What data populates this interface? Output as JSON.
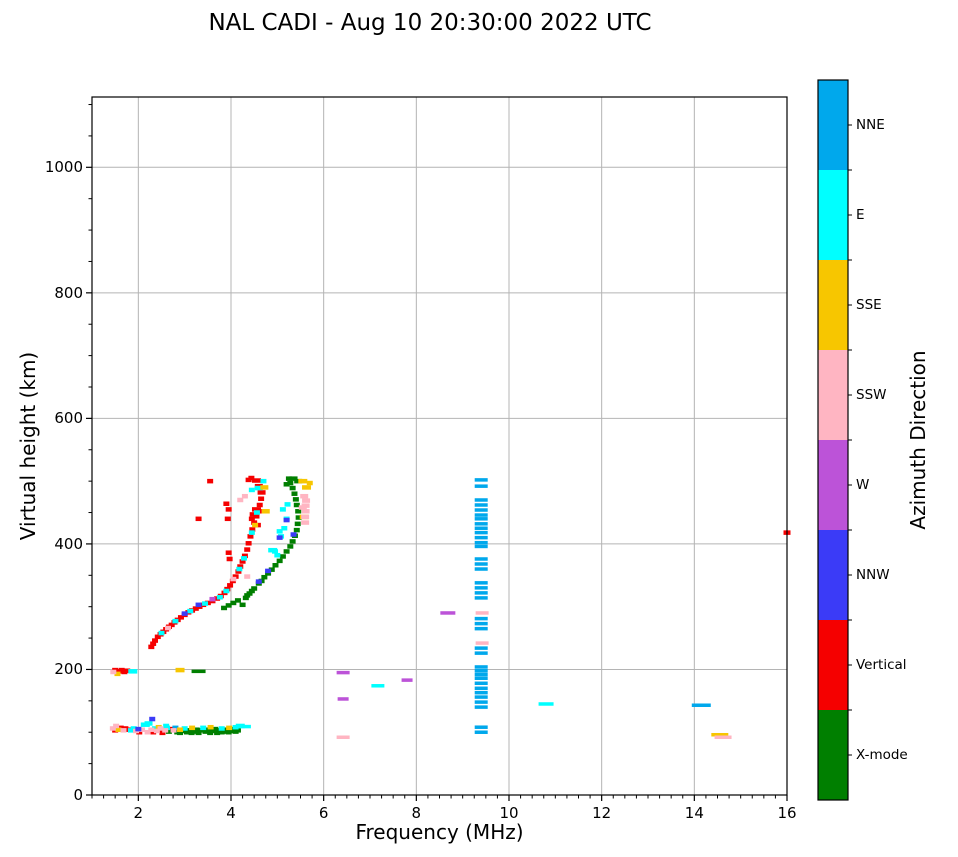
{
  "title": "NAL CADI - Aug 10 20:30:00 2022 UTC",
  "axes": {
    "xlabel": "Frequency (MHz)",
    "ylabel": "Virtual height (km)",
    "x_ticks": [
      2,
      4,
      6,
      8,
      10,
      12,
      14,
      16
    ],
    "y_ticks": [
      0,
      200,
      400,
      600,
      800,
      1000
    ],
    "xlim": [
      1,
      16
    ],
    "ylim": [
      0,
      1112
    ],
    "x_minor_step": 0.25,
    "y_minor_step": 50,
    "grid": true,
    "grid_color": "#b4b4b4"
  },
  "colorbar": {
    "label": "Azimuth Direction",
    "categories_top_to_bottom": [
      {
        "label": "NNE",
        "color": "#00a8ec"
      },
      {
        "label": "E",
        "color": "#00ffff"
      },
      {
        "label": "SSE",
        "color": "#f7c600"
      },
      {
        "label": "SSW",
        "color": "#ffb5c2"
      },
      {
        "label": "W",
        "color": "#bc53d8"
      },
      {
        "label": "NNW",
        "color": "#3b3bf7"
      },
      {
        "label": "Vertical",
        "color": "#f50000"
      },
      {
        "label": "X-mode",
        "color": "#007f00"
      }
    ]
  },
  "chart_data": {
    "type": "scatter",
    "title": "NAL CADI - Aug 10 20:30:00 2022 UTC",
    "xlabel": "Frequency (MHz)",
    "ylabel": "Virtual height (km)",
    "xlim": [
      1,
      16
    ],
    "ylim": [
      0,
      1112
    ],
    "legend_position": "right-colorbar",
    "point_units": "freq_MHz, height_km, optional_dash_width_px",
    "series": [
      {
        "name": "Vertical",
        "color": "#f50000",
        "points": [
          [
            2.28,
            236
          ],
          [
            2.32,
            241
          ],
          [
            2.36,
            246
          ],
          [
            2.42,
            252
          ],
          [
            2.48,
            256
          ],
          [
            2.54,
            260
          ],
          [
            2.6,
            264
          ],
          [
            2.66,
            268
          ],
          [
            2.72,
            271
          ],
          [
            2.78,
            275
          ],
          [
            2.85,
            279
          ],
          [
            2.92,
            283
          ],
          [
            3.0,
            287
          ],
          [
            3.08,
            291
          ],
          [
            3.16,
            294
          ],
          [
            3.24,
            297
          ],
          [
            3.32,
            300
          ],
          [
            3.4,
            303
          ],
          [
            3.5,
            306
          ],
          [
            3.6,
            309
          ],
          [
            3.7,
            313
          ],
          [
            3.78,
            317
          ],
          [
            3.86,
            322
          ],
          [
            3.92,
            328
          ],
          [
            3.98,
            334
          ],
          [
            4.04,
            341
          ],
          [
            4.1,
            348
          ],
          [
            4.16,
            356
          ],
          [
            4.2,
            364
          ],
          [
            4.25,
            372
          ],
          [
            4.3,
            381
          ],
          [
            4.35,
            391
          ],
          [
            4.38,
            401
          ],
          [
            4.42,
            412
          ],
          [
            4.46,
            423
          ],
          [
            4.5,
            434
          ],
          [
            4.55,
            444
          ],
          [
            4.6,
            452
          ],
          [
            4.62,
            462
          ],
          [
            4.65,
            472
          ],
          [
            4.66,
            482,
            8
          ],
          [
            4.6,
            492,
            8
          ],
          [
            4.55,
            501,
            9
          ],
          [
            4.44,
            505
          ],
          [
            4.38,
            502
          ],
          [
            4.55,
            455,
            9
          ],
          [
            4.5,
            447,
            9
          ],
          [
            4.58,
            430
          ],
          [
            4.45,
            440
          ],
          [
            3.3,
            440
          ],
          [
            3.55,
            500
          ],
          [
            3.93,
            440
          ],
          [
            3.95,
            455
          ],
          [
            3.9,
            464
          ],
          [
            3.95,
            386
          ],
          [
            3.97,
            376
          ],
          [
            1.5,
            103
          ],
          [
            1.62,
            107
          ],
          [
            1.72,
            106
          ],
          [
            1.78,
            104
          ],
          [
            2.02,
            100
          ],
          [
            2.32,
            100
          ],
          [
            2.5,
            104
          ],
          [
            2.52,
            99
          ],
          [
            2.7,
            105
          ],
          [
            1.5,
            199
          ],
          [
            1.58,
            197
          ],
          [
            1.64,
            199
          ],
          [
            1.7,
            196
          ],
          [
            1.76,
            198
          ],
          [
            16.0,
            418,
            7
          ]
        ]
      },
      {
        "name": "X-mode",
        "color": "#007f00",
        "points": [
          [
            2.66,
            101
          ],
          [
            2.84,
            100
          ],
          [
            2.9,
            99
          ],
          [
            2.95,
            102
          ],
          [
            3.05,
            100
          ],
          [
            3.1,
            103
          ],
          [
            3.15,
            99
          ],
          [
            3.2,
            101
          ],
          [
            3.26,
            104
          ],
          [
            3.3,
            99
          ],
          [
            3.36,
            103
          ],
          [
            3.45,
            101
          ],
          [
            3.5,
            104
          ],
          [
            3.55,
            99
          ],
          [
            3.6,
            102
          ],
          [
            3.66,
            105
          ],
          [
            3.7,
            99
          ],
          [
            3.76,
            103
          ],
          [
            3.8,
            100
          ],
          [
            3.86,
            101
          ],
          [
            3.9,
            104
          ],
          [
            3.95,
            100
          ],
          [
            4.0,
            102
          ],
          [
            4.06,
            105
          ],
          [
            4.1,
            101
          ],
          [
            4.15,
            103
          ],
          [
            3.3,
            197,
            14
          ],
          [
            3.85,
            298
          ],
          [
            3.95,
            302
          ],
          [
            4.05,
            306
          ],
          [
            4.15,
            310
          ],
          [
            4.25,
            303
          ],
          [
            4.32,
            314
          ],
          [
            4.35,
            318
          ],
          [
            4.4,
            321
          ],
          [
            4.45,
            325
          ],
          [
            4.5,
            329
          ],
          [
            4.6,
            337
          ],
          [
            4.66,
            341
          ],
          [
            4.72,
            347
          ],
          [
            4.8,
            353
          ],
          [
            4.88,
            359
          ],
          [
            4.96,
            366
          ],
          [
            5.05,
            373
          ],
          [
            5.12,
            380
          ],
          [
            5.2,
            388
          ],
          [
            5.28,
            396
          ],
          [
            5.33,
            404
          ],
          [
            5.38,
            413
          ],
          [
            5.42,
            422
          ],
          [
            5.44,
            432
          ],
          [
            5.46,
            442
          ],
          [
            5.45,
            452
          ],
          [
            5.42,
            462
          ],
          [
            5.4,
            471
          ],
          [
            5.37,
            480
          ],
          [
            5.33,
            489
          ],
          [
            5.28,
            497
          ],
          [
            5.25,
            504
          ],
          [
            5.35,
            504,
            8
          ],
          [
            5.45,
            500,
            8
          ],
          [
            5.2,
            495
          ]
        ]
      },
      {
        "name": "E",
        "color": "#00ffff",
        "points": [
          [
            1.84,
            103
          ],
          [
            1.9,
            106
          ],
          [
            2.15,
            112,
            9
          ],
          [
            2.22,
            114,
            8
          ],
          [
            2.36,
            106
          ],
          [
            2.6,
            110
          ],
          [
            2.62,
            107
          ],
          [
            3.0,
            106
          ],
          [
            3.4,
            107
          ],
          [
            3.8,
            106
          ],
          [
            4.1,
            108
          ],
          [
            4.2,
            110,
            9
          ],
          [
            4.3,
            109,
            12
          ],
          [
            1.88,
            197,
            9
          ],
          [
            2.5,
            258
          ],
          [
            2.8,
            277
          ],
          [
            3.12,
            293
          ],
          [
            3.44,
            305
          ],
          [
            3.76,
            315
          ],
          [
            3.9,
            325
          ],
          [
            4.18,
            360
          ],
          [
            4.28,
            377
          ],
          [
            4.45,
            418
          ],
          [
            4.56,
            450
          ],
          [
            4.45,
            486
          ],
          [
            4.6,
            489,
            8
          ],
          [
            4.7,
            500
          ],
          [
            4.9,
            390,
            9
          ],
          [
            4.95,
            388
          ],
          [
            5.0,
            382
          ],
          [
            5.05,
            420
          ],
          [
            5.08,
            412
          ],
          [
            5.15,
            425
          ],
          [
            5.2,
            440
          ],
          [
            5.12,
            455
          ],
          [
            5.22,
            463
          ],
          [
            7.17,
            174,
            13
          ],
          [
            10.8,
            145,
            15
          ]
        ]
      },
      {
        "name": "NNE",
        "color": "#00a8ec",
        "points": [
          [
            2.8,
            107
          ],
          [
            9.4,
            502,
            13
          ],
          [
            9.4,
            492,
            13
          ],
          [
            9.4,
            470,
            13
          ],
          [
            9.4,
            462,
            13
          ],
          [
            9.4,
            454,
            13
          ],
          [
            9.4,
            446,
            13
          ],
          [
            9.4,
            440,
            13
          ],
          [
            9.4,
            432,
            13
          ],
          [
            9.4,
            425,
            13
          ],
          [
            9.4,
            418,
            13
          ],
          [
            9.4,
            410,
            13
          ],
          [
            9.4,
            402,
            13
          ],
          [
            9.4,
            396,
            13
          ],
          [
            9.4,
            376,
            13
          ],
          [
            9.4,
            368,
            13
          ],
          [
            9.4,
            360,
            13
          ],
          [
            9.4,
            338,
            13
          ],
          [
            9.4,
            330,
            13
          ],
          [
            9.4,
            322,
            13
          ],
          [
            9.4,
            314,
            13
          ],
          [
            9.4,
            281,
            13
          ],
          [
            9.4,
            273,
            13
          ],
          [
            9.4,
            265,
            13
          ],
          [
            9.4,
            234,
            13
          ],
          [
            9.4,
            226,
            13
          ],
          [
            9.4,
            204,
            13
          ],
          [
            9.4,
            198,
            13
          ],
          [
            9.4,
            192,
            13
          ],
          [
            9.4,
            186,
            13
          ],
          [
            9.4,
            178,
            13
          ],
          [
            9.4,
            170,
            13
          ],
          [
            9.4,
            163,
            13
          ],
          [
            9.4,
            156,
            13
          ],
          [
            9.4,
            148,
            13
          ],
          [
            9.4,
            140,
            13
          ],
          [
            9.4,
            108,
            13
          ],
          [
            9.4,
            100,
            13
          ],
          [
            14.15,
            143,
            19
          ]
        ]
      },
      {
        "name": "SSE",
        "color": "#f7c600",
        "points": [
          [
            1.57,
            104
          ],
          [
            2.44,
            108
          ],
          [
            2.9,
            104
          ],
          [
            3.16,
            107
          ],
          [
            3.56,
            108
          ],
          [
            3.96,
            107
          ],
          [
            1.55,
            193
          ],
          [
            2.9,
            199,
            9
          ],
          [
            4.52,
            430
          ],
          [
            4.75,
            452,
            8
          ],
          [
            4.72,
            490,
            8
          ],
          [
            5.55,
            500,
            9
          ],
          [
            5.63,
            490,
            9
          ],
          [
            5.58,
            443,
            9
          ],
          [
            5.7,
            497
          ],
          [
            14.55,
            96,
            17
          ]
        ]
      },
      {
        "name": "SSW",
        "color": "#ffb5c2",
        "points": [
          [
            1.45,
            106
          ],
          [
            1.52,
            110
          ],
          [
            1.68,
            103
          ],
          [
            1.95,
            102
          ],
          [
            2.08,
            104
          ],
          [
            2.2,
            100
          ],
          [
            2.28,
            104
          ],
          [
            2.4,
            102
          ],
          [
            2.48,
            106
          ],
          [
            2.58,
            103
          ],
          [
            2.76,
            103
          ],
          [
            1.46,
            196
          ],
          [
            2.64,
            266
          ],
          [
            4.05,
            344
          ],
          [
            4.35,
            348
          ],
          [
            4.2,
            470
          ],
          [
            4.3,
            476
          ],
          [
            5.6,
            434,
            8
          ],
          [
            5.6,
            443,
            8
          ],
          [
            5.61,
            452,
            8
          ],
          [
            5.61,
            461,
            8
          ],
          [
            5.62,
            469,
            8
          ],
          [
            5.58,
            476,
            8
          ],
          [
            5.55,
            458,
            8
          ],
          [
            9.42,
            290,
            13
          ],
          [
            9.42,
            242,
            13
          ],
          [
            6.42,
            92,
            13
          ],
          [
            14.62,
            92,
            17
          ]
        ]
      },
      {
        "name": "W",
        "color": "#bc53d8",
        "points": [
          [
            3.6,
            312
          ],
          [
            6.42,
            195,
            13
          ],
          [
            6.42,
            153,
            11
          ],
          [
            7.8,
            183,
            11
          ],
          [
            8.68,
            290,
            15
          ]
        ]
      },
      {
        "name": "NNW",
        "color": "#3b3bf7",
        "points": [
          [
            2.0,
            105
          ],
          [
            2.3,
            121
          ],
          [
            3.0,
            289
          ],
          [
            3.3,
            303
          ],
          [
            4.6,
            340
          ],
          [
            4.8,
            357
          ],
          [
            5.05,
            410
          ],
          [
            5.2,
            438
          ],
          [
            5.35,
            415
          ]
        ]
      }
    ]
  }
}
